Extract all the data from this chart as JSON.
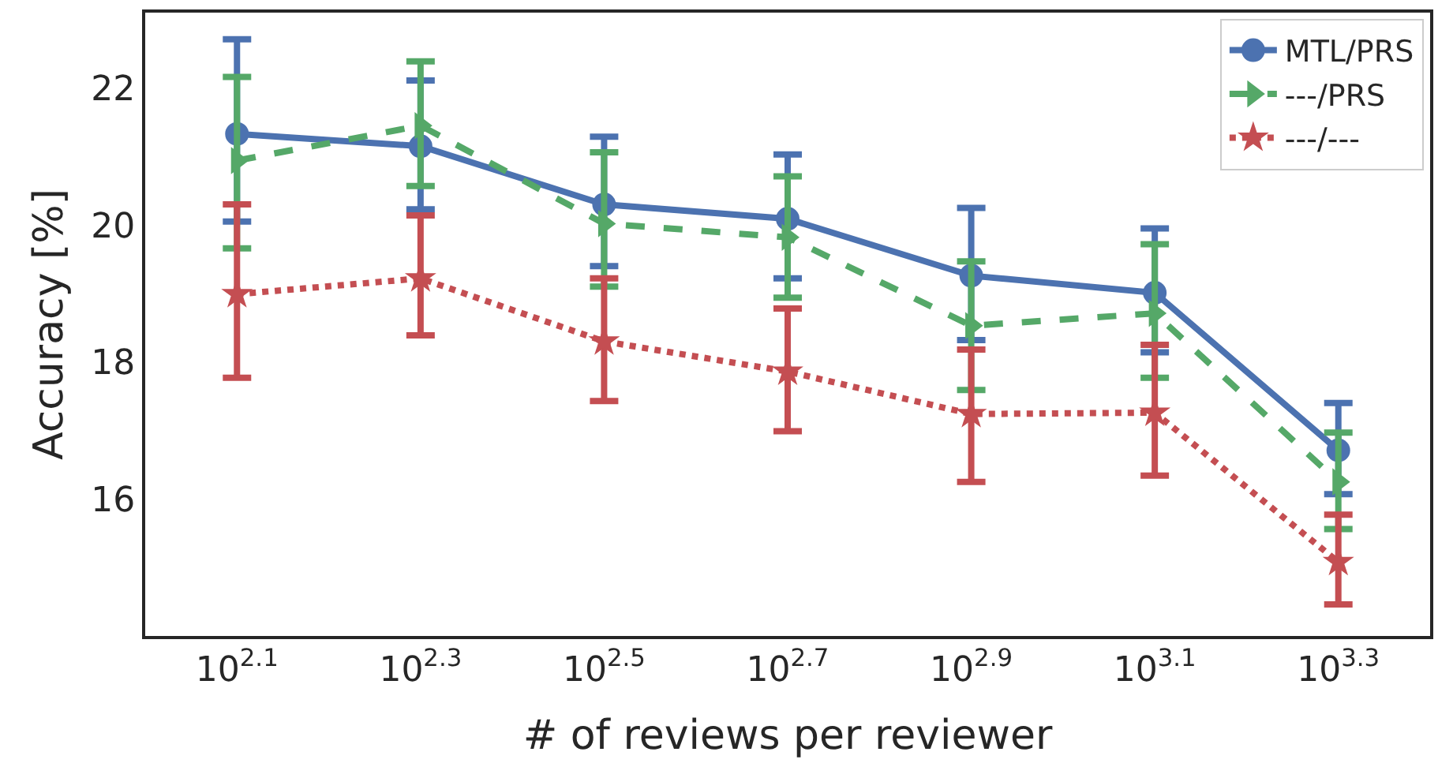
{
  "chart_data": {
    "type": "line",
    "xlabel": "# of reviews per reviewer",
    "ylabel": "Accuracy [%]",
    "categories": [
      "10$^{2.1}$",
      "10$^{2.3}$",
      "10$^{2.5}$",
      "10$^{2.7}$",
      "10$^{2.9}$",
      "10$^{3.1}$",
      "10$^{3.3}$"
    ],
    "ylim": [
      14.0,
      23.1
    ],
    "yticks": [
      16,
      18,
      20,
      22
    ],
    "grid": false,
    "legend": "top right",
    "series": [
      {
        "name": "MTL/PRS",
        "color": "#4c72b0",
        "marker": "circle",
        "line_style": "solid",
        "values": [
          21.33,
          21.15,
          20.3,
          20.09,
          19.26,
          19.01,
          16.71
        ],
        "errors": [
          [
            20.05,
            22.71
          ],
          [
            20.23,
            22.11
          ],
          [
            19.4,
            21.29
          ],
          [
            19.22,
            21.03
          ],
          [
            18.32,
            20.25
          ],
          [
            18.14,
            19.95
          ],
          [
            16.07,
            17.4
          ]
        ]
      },
      {
        "name": "---/PRS",
        "color": "#55a868",
        "marker": "triangle",
        "line_style": "dashed",
        "values": [
          20.94,
          21.45,
          20.02,
          19.82,
          18.53,
          18.71,
          16.25
        ],
        "errors": [
          [
            19.66,
            22.16
          ],
          [
            20.57,
            22.39
          ],
          [
            19.1,
            21.06
          ],
          [
            18.94,
            20.71
          ],
          [
            17.59,
            19.47
          ],
          [
            17.77,
            19.72
          ],
          [
            15.56,
            16.97
          ]
        ]
      },
      {
        "name": "---/---",
        "color": "#c44e52",
        "marker": "star",
        "line_style": "dotted",
        "values": [
          18.99,
          19.22,
          18.3,
          17.86,
          17.24,
          17.26,
          15.08
        ],
        "errors": [
          [
            17.77,
            20.3
          ],
          [
            18.39,
            20.14
          ],
          [
            17.43,
            19.22
          ],
          [
            16.99,
            18.78
          ],
          [
            16.25,
            18.18
          ],
          [
            16.34,
            18.25
          ],
          [
            14.46,
            15.77
          ]
        ]
      }
    ]
  }
}
